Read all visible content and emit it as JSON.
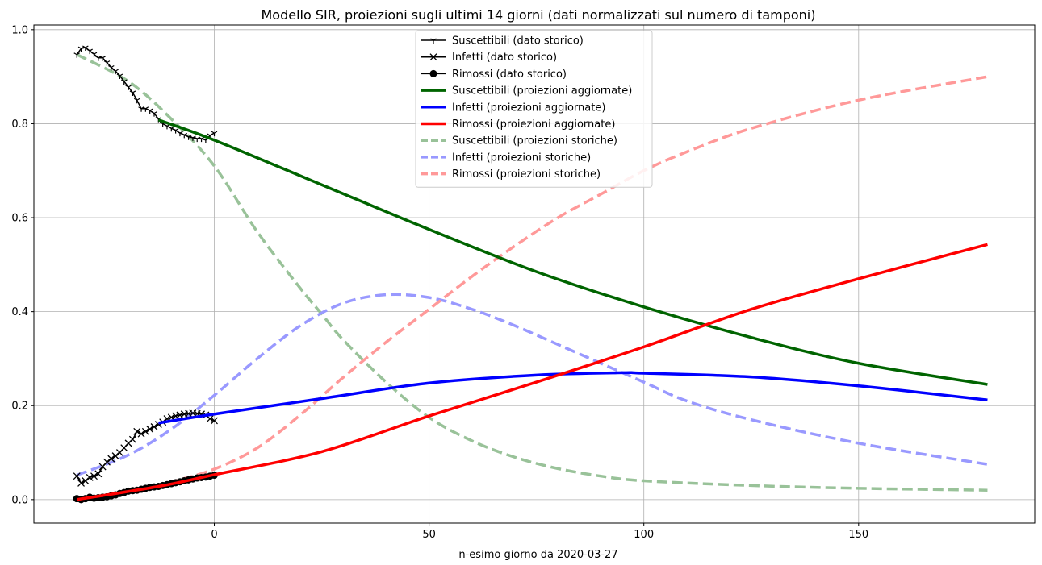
{
  "chart_data": {
    "type": "line",
    "title": "Modello SIR, proiezioni sugli ultimi 14 giorni (dati normalizzati sul numero di  tamponi)",
    "xlabel": "n-esimo giorno da 2020-03-27",
    "ylabel": "",
    "xlim": [
      -42,
      191
    ],
    "ylim": [
      -0.05,
      1.01
    ],
    "grid": true,
    "legend_position": "top-center",
    "x_ticks": [
      0,
      50,
      100,
      150
    ],
    "x_tick_labels": [
      "0",
      "50",
      "100",
      "150"
    ],
    "y_ticks": [
      0.0,
      0.2,
      0.4,
      0.6,
      0.8,
      1.0
    ],
    "y_tick_labels": [
      "0.0",
      "0.2",
      "0.4",
      "0.6",
      "0.8",
      "1.0"
    ],
    "series": [
      {
        "name": "Suscettibili (dato storico)",
        "color": "#000000",
        "marker": "tri",
        "style": "solid",
        "width": 1.5,
        "points": [
          [
            -32,
            0.947
          ],
          [
            -31,
            0.96
          ],
          [
            -30,
            0.962
          ],
          [
            -29,
            0.955
          ],
          [
            -28,
            0.948
          ],
          [
            -27,
            0.94
          ],
          [
            -26,
            0.94
          ],
          [
            -25,
            0.93
          ],
          [
            -24,
            0.92
          ],
          [
            -23,
            0.912
          ],
          [
            -22,
            0.902
          ],
          [
            -21,
            0.89
          ],
          [
            -20,
            0.878
          ],
          [
            -19,
            0.866
          ],
          [
            -18,
            0.85
          ],
          [
            -17,
            0.832
          ],
          [
            -16,
            0.832
          ],
          [
            -15,
            0.828
          ],
          [
            -14,
            0.822
          ],
          [
            -13,
            0.81
          ],
          [
            -12,
            0.8
          ],
          [
            -11,
            0.795
          ],
          [
            -10,
            0.79
          ],
          [
            -9,
            0.786
          ],
          [
            -8,
            0.78
          ],
          [
            -7,
            0.776
          ],
          [
            -6,
            0.772
          ],
          [
            -5,
            0.77
          ],
          [
            -4,
            0.768
          ],
          [
            -3,
            0.768
          ],
          [
            -2,
            0.765
          ],
          [
            -1,
            0.775
          ],
          [
            0,
            0.78
          ]
        ]
      },
      {
        "name": "Infetti (dato storico)",
        "color": "#000000",
        "marker": "x",
        "style": "solid",
        "width": 1.5,
        "points": [
          [
            -32,
            0.05
          ],
          [
            -31,
            0.035
          ],
          [
            -30,
            0.04
          ],
          [
            -29,
            0.047
          ],
          [
            -28,
            0.05
          ],
          [
            -27,
            0.055
          ],
          [
            -26,
            0.07
          ],
          [
            -25,
            0.08
          ],
          [
            -24,
            0.087
          ],
          [
            -23,
            0.093
          ],
          [
            -22,
            0.1
          ],
          [
            -21,
            0.11
          ],
          [
            -20,
            0.12
          ],
          [
            -19,
            0.128
          ],
          [
            -18,
            0.145
          ],
          [
            -17,
            0.14
          ],
          [
            -16,
            0.145
          ],
          [
            -15,
            0.15
          ],
          [
            -14,
            0.155
          ],
          [
            -13,
            0.16
          ],
          [
            -12,
            0.165
          ],
          [
            -11,
            0.172
          ],
          [
            -10,
            0.175
          ],
          [
            -9,
            0.178
          ],
          [
            -8,
            0.18
          ],
          [
            -7,
            0.182
          ],
          [
            -6,
            0.183
          ],
          [
            -5,
            0.184
          ],
          [
            -4,
            0.183
          ],
          [
            -3,
            0.182
          ],
          [
            -2,
            0.18
          ],
          [
            -1,
            0.172
          ],
          [
            0,
            0.168
          ]
        ]
      },
      {
        "name": "Rimossi (dato storico)",
        "color": "#000000",
        "marker": "o",
        "style": "solid",
        "width": 1.5,
        "points": [
          [
            -32,
            0.002
          ],
          [
            -31,
            0.0
          ],
          [
            -30,
            0.002
          ],
          [
            -29,
            0.005
          ],
          [
            -28,
            0.003
          ],
          [
            -27,
            0.004
          ],
          [
            -26,
            0.005
          ],
          [
            -25,
            0.006
          ],
          [
            -24,
            0.008
          ],
          [
            -23,
            0.01
          ],
          [
            -22,
            0.013
          ],
          [
            -21,
            0.015
          ],
          [
            -20,
            0.018
          ],
          [
            -19,
            0.019
          ],
          [
            -18,
            0.02
          ],
          [
            -17,
            0.022
          ],
          [
            -16,
            0.024
          ],
          [
            -15,
            0.026
          ],
          [
            -14,
            0.027
          ],
          [
            -13,
            0.028
          ],
          [
            -12,
            0.03
          ],
          [
            -11,
            0.032
          ],
          [
            -10,
            0.034
          ],
          [
            -9,
            0.036
          ],
          [
            -8,
            0.038
          ],
          [
            -7,
            0.04
          ],
          [
            -6,
            0.042
          ],
          [
            -5,
            0.044
          ],
          [
            -4,
            0.046
          ],
          [
            -3,
            0.047
          ],
          [
            -2,
            0.048
          ],
          [
            -1,
            0.05
          ],
          [
            0,
            0.052
          ]
        ]
      },
      {
        "name": "Suscettibili  (proiezioni aggiornate)",
        "color": "#006400",
        "style": "solid",
        "width": 3.5,
        "points": [
          [
            -13,
            0.808
          ],
          [
            0,
            0.765
          ],
          [
            25,
            0.67
          ],
          [
            50,
            0.575
          ],
          [
            75,
            0.485
          ],
          [
            100,
            0.41
          ],
          [
            125,
            0.345
          ],
          [
            150,
            0.29
          ],
          [
            180,
            0.245
          ]
        ]
      },
      {
        "name": "Infetti (proiezioni    aggiornate)",
        "color": "#0000ff",
        "style": "solid",
        "width": 3.5,
        "points": [
          [
            -13,
            0.163
          ],
          [
            0,
            0.182
          ],
          [
            25,
            0.215
          ],
          [
            50,
            0.248
          ],
          [
            75,
            0.265
          ],
          [
            95,
            0.27
          ],
          [
            100,
            0.269
          ],
          [
            125,
            0.261
          ],
          [
            150,
            0.242
          ],
          [
            180,
            0.212
          ]
        ]
      },
      {
        "name": "Rimossi (proiezioni     aggiornate)",
        "color": "#ff0000",
        "style": "solid",
        "width": 3.5,
        "points": [
          [
            -32,
            0.0
          ],
          [
            -13,
            0.028
          ],
          [
            0,
            0.053
          ],
          [
            25,
            0.102
          ],
          [
            50,
            0.178
          ],
          [
            75,
            0.25
          ],
          [
            100,
            0.325
          ],
          [
            125,
            0.405
          ],
          [
            150,
            0.47
          ],
          [
            180,
            0.543
          ]
        ]
      },
      {
        "name": "Suscettibili    (proiezioni storiche)",
        "color": "#99c299",
        "style": "dashed",
        "width": 3.5,
        "points": [
          [
            -32,
            0.947
          ],
          [
            -20,
            0.89
          ],
          [
            -10,
            0.81
          ],
          [
            0,
            0.71
          ],
          [
            10,
            0.57
          ],
          [
            20,
            0.45
          ],
          [
            25,
            0.395
          ],
          [
            30,
            0.34
          ],
          [
            40,
            0.25
          ],
          [
            50,
            0.175
          ],
          [
            60,
            0.125
          ],
          [
            70,
            0.09
          ],
          [
            80,
            0.066
          ],
          [
            90,
            0.05
          ],
          [
            100,
            0.04
          ],
          [
            125,
            0.03
          ],
          [
            150,
            0.024
          ],
          [
            180,
            0.02
          ]
        ]
      },
      {
        "name": "Infetti (proiezioni  storiche)",
        "color": "#9999ff",
        "style": "dashed",
        "width": 3.5,
        "points": [
          [
            -32,
            0.052
          ],
          [
            -20,
            0.095
          ],
          [
            -10,
            0.15
          ],
          [
            0,
            0.222
          ],
          [
            10,
            0.3
          ],
          [
            20,
            0.37
          ],
          [
            30,
            0.418
          ],
          [
            40,
            0.436
          ],
          [
            50,
            0.43
          ],
          [
            60,
            0.405
          ],
          [
            70,
            0.37
          ],
          [
            80,
            0.33
          ],
          [
            90,
            0.29
          ],
          [
            100,
            0.25
          ],
          [
            110,
            0.21
          ],
          [
            125,
            0.17
          ],
          [
            150,
            0.12
          ],
          [
            180,
            0.075
          ]
        ]
      },
      {
        "name": "Rimossi (proiezioni   storiche)",
        "color": "#ff9999",
        "style": "dashed",
        "width": 3.5,
        "points": [
          [
            -32,
            0.0
          ],
          [
            -20,
            0.018
          ],
          [
            -10,
            0.038
          ],
          [
            0,
            0.065
          ],
          [
            10,
            0.11
          ],
          [
            20,
            0.18
          ],
          [
            30,
            0.26
          ],
          [
            40,
            0.335
          ],
          [
            50,
            0.405
          ],
          [
            60,
            0.475
          ],
          [
            70,
            0.54
          ],
          [
            80,
            0.6
          ],
          [
            90,
            0.65
          ],
          [
            100,
            0.7
          ],
          [
            110,
            0.74
          ],
          [
            125,
            0.79
          ],
          [
            150,
            0.85
          ],
          [
            180,
            0.9
          ]
        ]
      }
    ]
  }
}
